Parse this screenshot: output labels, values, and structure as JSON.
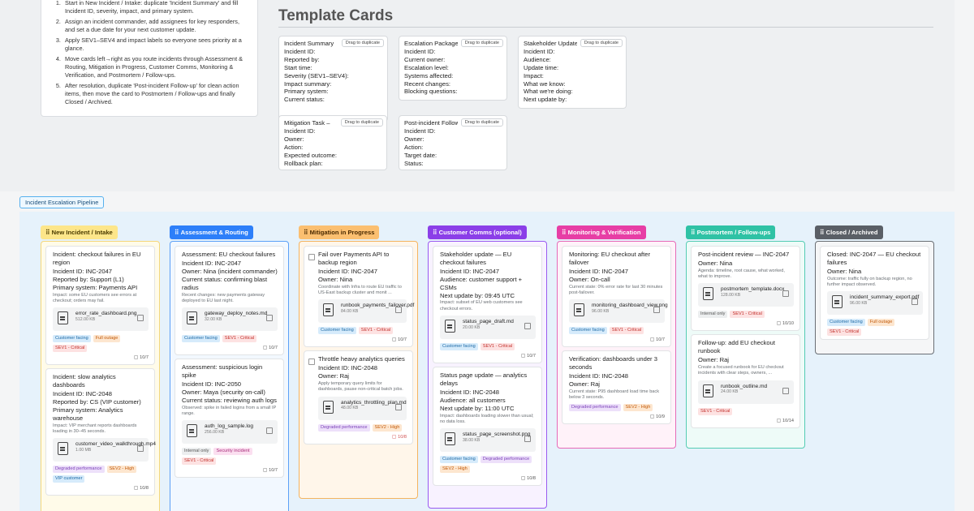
{
  "instructions": [
    "Start in New Incident / Intake: duplicate 'Incident Summary' and fill Incident ID, severity, impact, and primary system.",
    "Assign an incident commander, add assignees for key responders, and set a due date for your next customer update.",
    "Apply SEV1–SEV4 and impact labels so everyone sees priority at a glance.",
    "Move cards left→right as you route incidents through Assessment & Routing, Mitigation in Progress, Customer Comms, Monitoring & Verification, and Postmortem / Follow-ups.",
    "After resolution, duplicate 'Post-incident Follow-up' for clean action items, then move the card to Postmortem / Follow-ups and finally Closed / Archived."
  ],
  "templates": {
    "title": "Template Cards",
    "drag_label": "Drag to duplicate",
    "cards": [
      {
        "title": "Incident Summary",
        "fields": [
          "Incident ID:",
          "Reported by:",
          "Start time:",
          "Severity (SEV1–SEV4):",
          "Impact summary:",
          "Primary system:",
          "Current status:"
        ]
      },
      {
        "title": "Escalation Package",
        "fields": [
          "Incident ID:",
          "Current owner:",
          "Escalation level:",
          "Systems affected:",
          "Recent changes:",
          "Blocking questions:"
        ]
      },
      {
        "title": "Stakeholder Update",
        "fields": [
          "Incident ID:",
          "Audience:",
          "Update time:",
          "Impact:",
          "What we know:",
          "What we're doing:",
          "Next update by:"
        ]
      },
      {
        "title": "Mitigation Task –",
        "fields": [
          "Incident ID:",
          "Owner:",
          "Action:",
          "Expected outcome:",
          "Rollback plan:"
        ]
      },
      {
        "title": "Post-incident Follow-up",
        "fields": [
          "Incident ID:",
          "Owner:",
          "Action:",
          "Target date:",
          "Status:"
        ]
      }
    ]
  },
  "pipeline_label": "Incident Escalation Pipeline",
  "columns": [
    {
      "title": "New Incident / Intake",
      "cards": [
        {
          "lines": [
            "Incident: checkout failures in EU region",
            "Incident ID: INC-2047",
            "Reported by: Support (L1)",
            "Primary system: Payments API"
          ],
          "desc": "Impact: some EU customers see errors at checkout; orders may fail.",
          "file": {
            "name": "error_rate_dashboard.png",
            "size": "512.00 KB"
          },
          "tags": [
            "Customer facing",
            "Full outage",
            "SEV1 - Critical"
          ],
          "due": "10/7"
        },
        {
          "lines": [
            "Incident: slow analytics dashboards",
            "Incident ID: INC-2048",
            "Reported by: CS (VIP customer)",
            "Primary system: Analytics warehouse"
          ],
          "desc": "Impact: VIP merchant reports dashboards loading in 30–45 seconds.",
          "file": {
            "name": "customer_video_walkthrough.mp4",
            "size": "1.00 MB"
          },
          "tags": [
            "Degraded performance",
            "SEV2 - High",
            "VIP customer"
          ],
          "due": "10/8"
        }
      ]
    },
    {
      "title": "Assessment & Routing",
      "cards": [
        {
          "lines": [
            "Assessment: EU checkout failures",
            "Incident ID: INC-2047",
            "Owner: Nina (incident commander)",
            "Current status: confirming blast radius"
          ],
          "desc": "Recent changes: new payments gateway deployed to EU last night.",
          "file": {
            "name": "gateway_deploy_notes.md",
            "size": "32.00 KB"
          },
          "tags": [
            "Customer facing",
            "SEV1 - Critical"
          ],
          "due": "10/7"
        },
        {
          "lines": [
            "Assessment: suspicious login spike",
            "Incident ID: INC-2050",
            "Owner: Maya (security on-call)",
            "Current status: reviewing auth logs"
          ],
          "desc": "Observed: spike in failed logins from a small IP range.",
          "file": {
            "name": "auth_log_sample.log",
            "size": "256.00 KB"
          },
          "tags": [
            "Internal only",
            "Security incident",
            "SEV1 - Critical"
          ],
          "due": "10/7"
        }
      ]
    },
    {
      "title": "Mitigation in Progress",
      "cards": [
        {
          "lines": [
            "Fail over Payments API to backup region",
            "Incident ID: INC-2047",
            "Owner: Nina"
          ],
          "desc": "Coordinate with Infra to route EU traffic to US-East backup cluster and monit ...",
          "file": {
            "name": "runbook_payments_failover.pdf",
            "size": "84.00 KB"
          },
          "tags": [
            "Customer facing",
            "SEV1 - Critical"
          ],
          "due": "10/7"
        },
        {
          "lines": [
            "Throttle heavy analytics queries",
            "Incident ID: INC-2048",
            "Owner: Raj"
          ],
          "desc": "Apply temporary query limits for dashboards, pause non-critical batch jobs.",
          "file": {
            "name": "analytics_throttling_plan.md",
            "size": "48.00 KB"
          },
          "tags": [
            "Degraded performance",
            "SEV2 - High"
          ],
          "due": "10/8"
        }
      ]
    },
    {
      "title": "Customer Comms (optional)",
      "cards": [
        {
          "lines": [
            "Stakeholder update — EU checkout failures",
            "Incident ID: INC-2047",
            "Audience: customer support + CSMs",
            "Next update by: 09:45 UTC"
          ],
          "desc": "Impact: subset of EU web customers see checkout errors.",
          "file": {
            "name": "status_page_draft.md",
            "size": "20.00 KB"
          },
          "tags": [
            "Customer facing",
            "SEV1 - Critical"
          ],
          "due": "10/7"
        },
        {
          "lines": [
            "Status page update — analytics delays",
            "Incident ID: INC-2048",
            "Audience: all customers",
            "Next update by: 11:00 UTC"
          ],
          "desc": "Impact: dashboards loading slower than usual; no data loss.",
          "file": {
            "name": "status_page_screenshot.png",
            "size": "38.00 KB"
          },
          "tags": [
            "Customer facing",
            "Degraded performance",
            "SEV2 - High"
          ],
          "due": "10/8"
        }
      ]
    },
    {
      "title": "Monitoring & Verification",
      "cards": [
        {
          "lines": [
            "Monitoring: EU checkout after failover",
            "Incident ID: INC-2047",
            "Owner: On-call"
          ],
          "desc": "Current state: 0% error rate for last 30 minutes post-failover.",
          "file": {
            "name": "monitoring_dashboard_view.png",
            "size": "96.00 KB"
          },
          "tags": [
            "Customer facing",
            "SEV1 - Critical"
          ],
          "due": "10/7"
        },
        {
          "lines": [
            "Verification: dashboards under 3 seconds",
            "Incident ID: INC-2048",
            "Owner: Raj"
          ],
          "desc": "Current state: P95 dashboard load time back below 3 seconds.",
          "file": null,
          "tags": [
            "Degraded performance",
            "SEV2 - High"
          ],
          "due": "10/9"
        }
      ]
    },
    {
      "title": "Postmortem / Follow-ups",
      "cards": [
        {
          "lines": [
            "Post-incident review — INC-2047",
            "Owner: Nina"
          ],
          "desc": "Agenda: timeline, root cause, what worked, what to improve.",
          "file": {
            "name": "postmortem_template.docx",
            "size": "128.00 KB"
          },
          "tags": [
            "Internal only",
            "SEV1 - Critical"
          ],
          "due": "10/10"
        },
        {
          "lines": [
            "Follow-up: add EU checkout runbook",
            "Owner: Raj"
          ],
          "desc": "Create a focused runbook for EU checkout incidents with clear steps, owners, ...",
          "file": {
            "name": "runbook_outline.md",
            "size": "24.00 KB"
          },
          "tags": [
            "SEV1 - Critical"
          ],
          "due": "10/14"
        }
      ]
    },
    {
      "title": "Closed / Archived",
      "cards": [
        {
          "lines": [
            "Closed: INC-2047 — EU checkout failures",
            "Owner: Nina"
          ],
          "desc": "Outcome: traffic fully on backup region, no further impact observed.",
          "file": {
            "name": "incident_summary_export.pdf",
            "size": "96.00 KB"
          },
          "tags": [
            "Customer facing",
            "Full outage",
            "SEV1 - Critical"
          ],
          "due": ""
        }
      ]
    }
  ],
  "tag_colors": {
    "Customer facing": "t-blue",
    "Full outage": "t-orange",
    "SEV1 - Critical": "t-red",
    "SEV2 - High": "t-orange",
    "Degraded performance": "t-purple",
    "VIP customer": "t-blue",
    "Internal only": "t-gray",
    "Security incident": "t-pink"
  }
}
